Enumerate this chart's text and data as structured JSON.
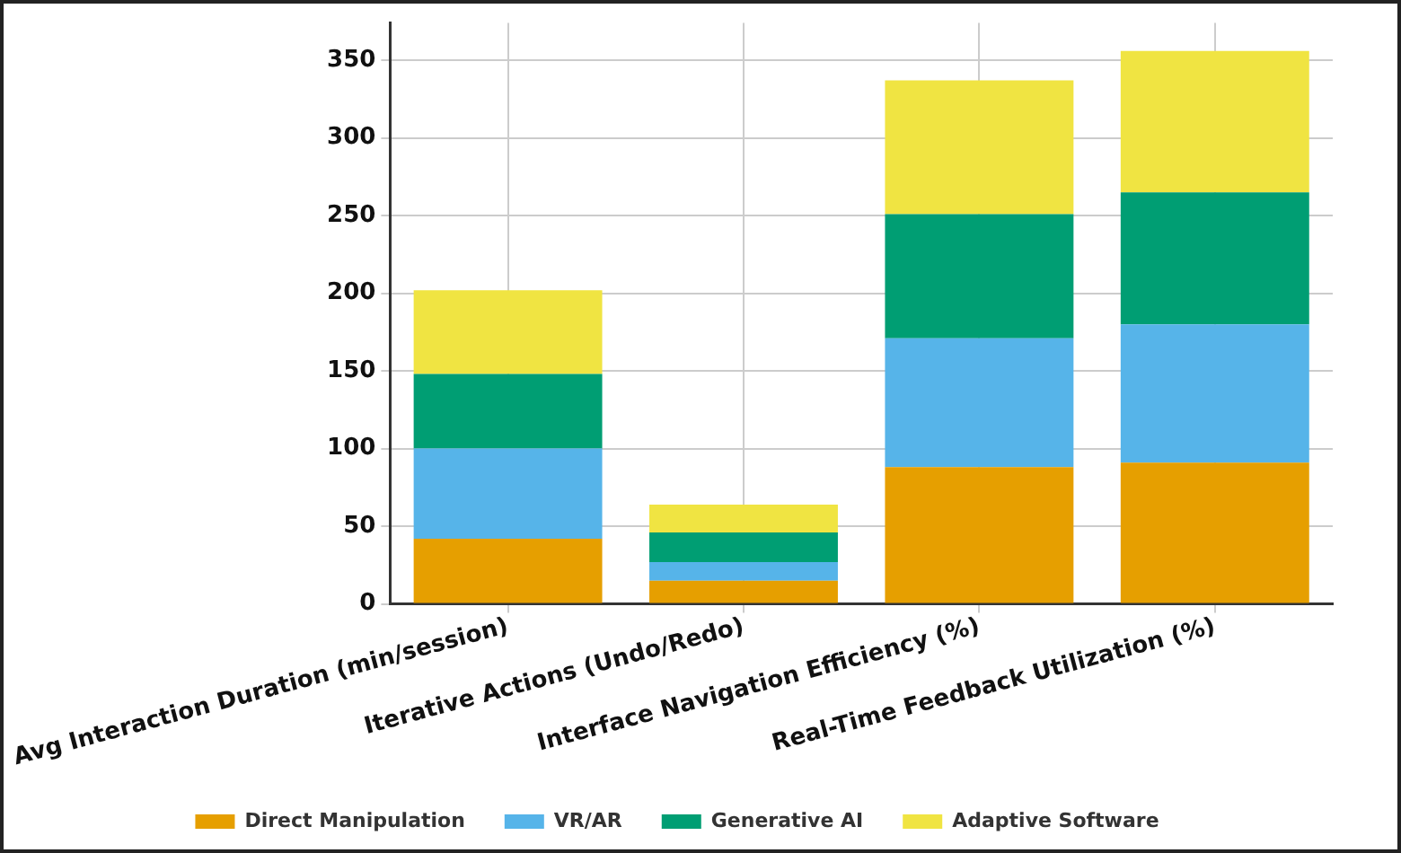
{
  "chart_data": {
    "type": "bar",
    "stacked": true,
    "categories": [
      "Avg Interaction Duration (min/session)",
      "Iterative Actions (Undo/Redo)",
      "Interface Navigation Efficiency (%)",
      "Real-Time Feedback Utilization (%)"
    ],
    "series": [
      {
        "name": "Direct Manipulation",
        "color": "#e69f00",
        "values": [
          42,
          15,
          88,
          91
        ]
      },
      {
        "name": "VR/AR",
        "color": "#56b4e9",
        "values": [
          58,
          12,
          83,
          89
        ]
      },
      {
        "name": "Generative AI",
        "color": "#009e73",
        "values": [
          48,
          19,
          80,
          85
        ]
      },
      {
        "name": "Adaptive Software",
        "color": "#f0e442",
        "values": [
          54,
          18,
          86,
          91
        ]
      }
    ],
    "ylim": [
      0,
      374
    ],
    "yticks": [
      0,
      50,
      100,
      150,
      200,
      250,
      300,
      350
    ],
    "grid": true,
    "legend": "bottom"
  }
}
